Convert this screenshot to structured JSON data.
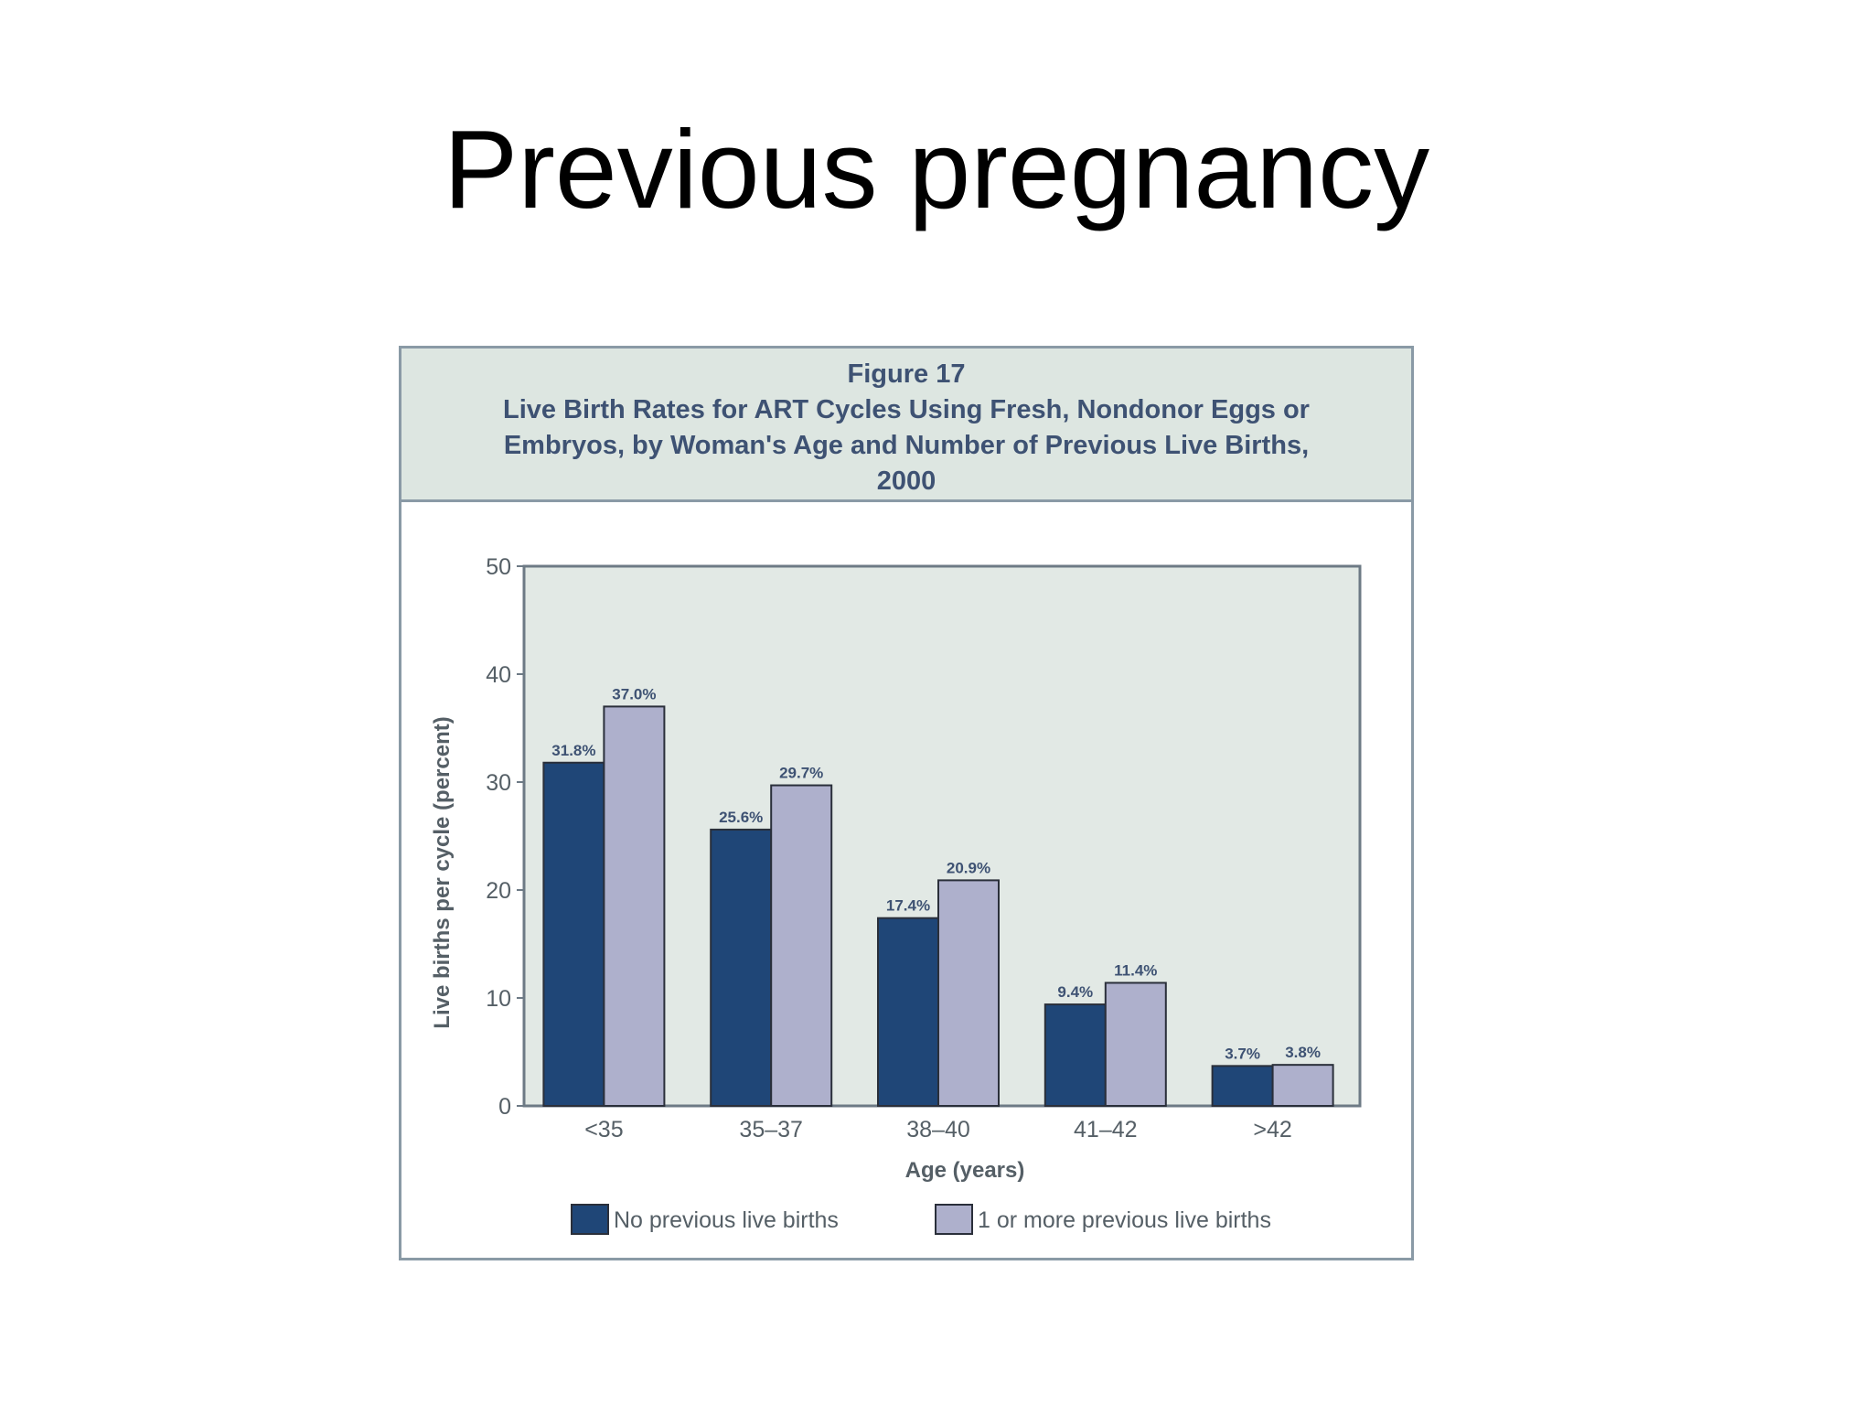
{
  "slide": {
    "title": "Previous pregnancy"
  },
  "figure": {
    "number": "Figure 17",
    "title": "Live Birth Rates for ART Cycles Using Fresh, Nondonor Eggs or Embryos, by Woman's Age and Number of Previous Live Births, 2000"
  },
  "chart_data": {
    "type": "bar",
    "title": "Live Birth Rates for ART Cycles Using Fresh, Nondonor Eggs or Embryos, by Woman's Age and Number of Previous Live Births, 2000",
    "xlabel": "Age (years)",
    "ylabel": "Live births per cycle (percent)",
    "categories": [
      "<35",
      "35–37",
      "38–40",
      "41–42",
      ">42"
    ],
    "ylim": [
      0,
      50
    ],
    "yticks": [
      0,
      10,
      20,
      30,
      40,
      50
    ],
    "legend_position": "bottom",
    "series": [
      {
        "name": "No previous live births",
        "color": "#1f4677",
        "values": [
          31.8,
          25.6,
          17.4,
          9.4,
          3.7
        ],
        "labels": [
          "31.8%",
          "25.6%",
          "17.4%",
          "9.4%",
          "3.7%"
        ]
      },
      {
        "name": "1 or more previous live births",
        "color": "#aeb0cc",
        "values": [
          37.0,
          29.7,
          20.9,
          11.4,
          3.8
        ],
        "labels": [
          "37.0%",
          "29.7%",
          "20.9%",
          "11.4%",
          "3.8%"
        ]
      }
    ],
    "colors": {
      "plot_background": "#e2e9e5",
      "axis": "#6d7a85",
      "bar_outline": "#2a2f3a"
    }
  }
}
